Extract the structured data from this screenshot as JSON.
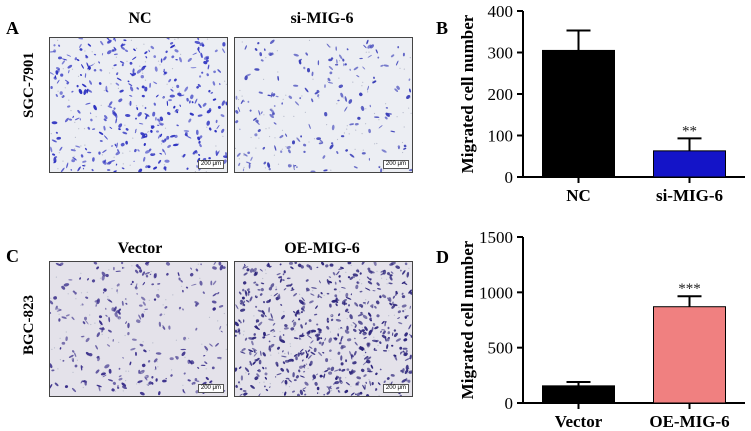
{
  "panels": {
    "A": {
      "letter": "A",
      "row_label": "SGC-7901",
      "images": [
        {
          "title": "NC",
          "scale": "200 μm",
          "stain": "#2a2fc0",
          "density": 0.55
        },
        {
          "title": "si-MIG-6",
          "scale": "200 μm",
          "stain": "#3a3fb8",
          "density": 0.22
        }
      ]
    },
    "B": {
      "letter": "B"
    },
    "C": {
      "letter": "C",
      "row_label": "BGC-823",
      "images": [
        {
          "title": "Vector",
          "scale": "200 μm",
          "stain": "#3a2f8a",
          "density": 0.35
        },
        {
          "title": "OE-MIG-6",
          "scale": "200 μm",
          "stain": "#2b237a",
          "density": 0.95
        }
      ]
    },
    "D": {
      "letter": "D"
    }
  },
  "colors": {
    "nc": "#000000",
    "si": "#1414c8",
    "vector": "#000000",
    "oe": "#f08080"
  },
  "chart_data": [
    {
      "type": "bar",
      "panel": "B",
      "categories": [
        "NC",
        "si-MIG-6"
      ],
      "values": [
        305,
        63
      ],
      "errors": [
        48,
        30
      ],
      "annotations": [
        "",
        "**"
      ],
      "ylabel": "Migrated cell number",
      "ylim": [
        0,
        400
      ],
      "yticks": [
        0,
        100,
        200,
        300,
        400
      ]
    },
    {
      "type": "bar",
      "panel": "D",
      "categories": [
        "Vector",
        "OE-MIG-6"
      ],
      "values": [
        155,
        870
      ],
      "errors": [
        35,
        95
      ],
      "annotations": [
        "",
        "***"
      ],
      "ylabel": "Migrated cell number",
      "ylim": [
        0,
        1500
      ],
      "yticks": [
        0,
        500,
        1000,
        1500
      ]
    }
  ]
}
